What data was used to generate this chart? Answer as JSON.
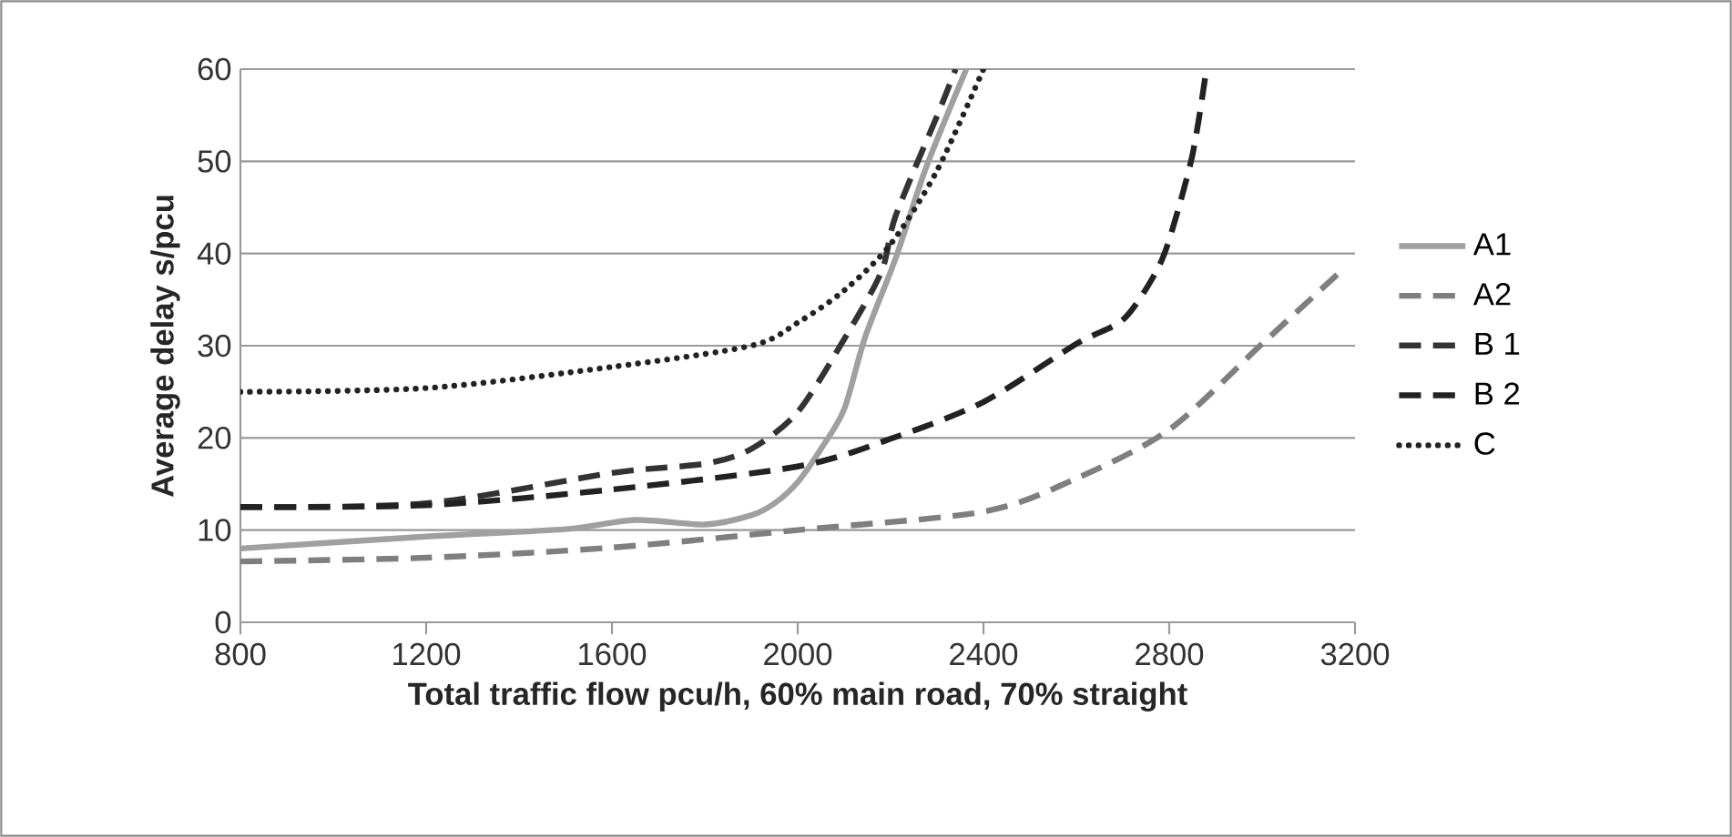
{
  "chart_data": {
    "type": "line",
    "xlabel": "Total traffic flow pcu/h, 60% main road, 70% straight",
    "ylabel": "Average delay s/pcu",
    "xlim": [
      800,
      3200
    ],
    "xticks": [
      800,
      1200,
      1600,
      2000,
      2400,
      2800,
      3200
    ],
    "ylim": [
      0,
      60
    ],
    "yticks": [
      0,
      10,
      20,
      30,
      40,
      50,
      60
    ],
    "grid": "y",
    "legend": "right",
    "series": [
      {
        "name": "A1",
        "color": "#a0a0a0",
        "line_style": "solid",
        "x": [
          800,
          1200,
          1500,
          1650,
          1800,
          1900,
          1950,
          2000,
          2050,
          2100,
          2145,
          2211,
          2277,
          2363
        ],
        "values": [
          8,
          9.3,
          10.1,
          11.1,
          10.6,
          11.6,
          12.9,
          15.2,
          18.8,
          23.1,
          30.9,
          39.5,
          49.4,
          60
        ]
      },
      {
        "name": "A2",
        "color": "#7f7f7f",
        "line_style": "dashed",
        "x": [
          800,
          1200,
          1600,
          2000,
          2400,
          2600,
          2800,
          3000,
          3170
        ],
        "values": [
          6.6,
          7,
          8.1,
          10,
          12,
          15.6,
          20.9,
          30.2,
          38.1
        ]
      },
      {
        "name": "B 1",
        "color": "#333333",
        "line_style": "dashed",
        "x": [
          800,
          1200,
          1600,
          1800,
          1900,
          2000,
          2100,
          2180,
          2211,
          2304,
          2340
        ],
        "values": [
          12.5,
          12.9,
          16.2,
          17.2,
          18.8,
          22.8,
          30.7,
          38,
          44.1,
          55.4,
          60
        ]
      },
      {
        "name": "B 2",
        "color": "#222222",
        "line_style": "dashed",
        "x": [
          800,
          1200,
          1600,
          2000,
          2200,
          2400,
          2600,
          2700,
          2766,
          2800,
          2850,
          2880
        ],
        "values": [
          12.5,
          12.7,
          14.4,
          16.9,
          19.9,
          23.9,
          30.2,
          32.8,
          37.5,
          41.5,
          50.7,
          60
        ]
      },
      {
        "name": "C",
        "color": "#222222",
        "line_style": "dotted",
        "x": [
          800,
          1200,
          1600,
          1900,
          2000,
          2100,
          2200,
          2300,
          2400
        ],
        "values": [
          25,
          25.4,
          27.7,
          30,
          32.5,
          36,
          41,
          49,
          60
        ]
      }
    ]
  }
}
